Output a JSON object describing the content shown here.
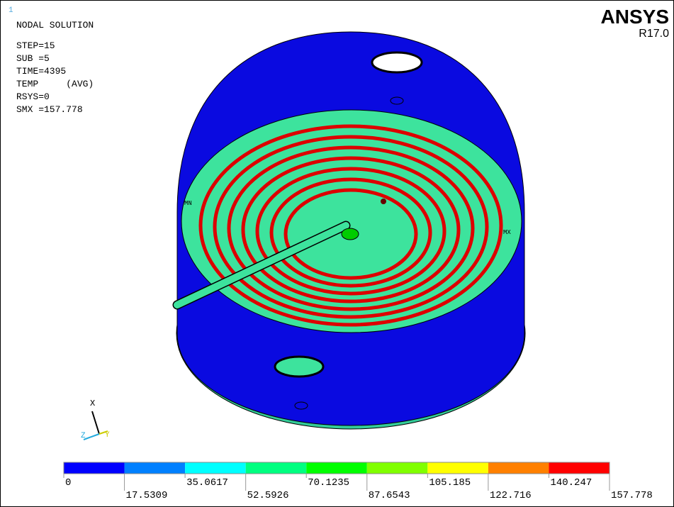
{
  "window_number": "1",
  "header": {
    "title": "NODAL SOLUTION",
    "lines": [
      "STEP=15",
      "SUB =5",
      "TIME=4395",
      "TEMP     (AVG)",
      "RSYS=0",
      "SMX =157.778"
    ]
  },
  "brand": {
    "name": "ANSYS",
    "version": "R17.0"
  },
  "model_labels": {
    "min": "MN",
    "max": "MX"
  },
  "triad": {
    "x": "X",
    "y": "Y",
    "z": "Z"
  },
  "legend": {
    "colors": [
      "#0000ff",
      "#0080ff",
      "#00ffff",
      "#00ff80",
      "#00ff00",
      "#80ff00",
      "#ffff00",
      "#ff8000",
      "#ff0000"
    ],
    "labels": [
      0,
      17.5309,
      35.0617,
      52.5926,
      70.1235,
      87.6543,
      105.185,
      122.716,
      140.247,
      157.778
    ]
  }
}
